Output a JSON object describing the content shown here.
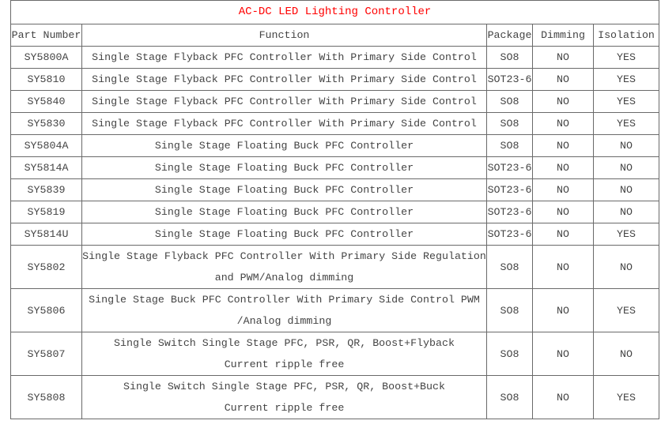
{
  "title": "AC-DC LED Lighting Controller",
  "headers": [
    "Part Number",
    "Function",
    "Package",
    "Dimming",
    "Isolation"
  ],
  "rows": [
    {
      "part": "SY5800A",
      "function": [
        "Single Stage Flyback PFC Controller With Primary Side Control"
      ],
      "package": "SO8",
      "dimming": "NO",
      "isolation": "YES"
    },
    {
      "part": "SY5810",
      "function": [
        "Single Stage Flyback PFC Controller With Primary Side Control"
      ],
      "package": "SOT23-6",
      "dimming": "NO",
      "isolation": "YES"
    },
    {
      "part": "SY5840",
      "function": [
        "Single Stage Flyback PFC Controller With Primary Side Control"
      ],
      "package": "SO8",
      "dimming": "NO",
      "isolation": "YES"
    },
    {
      "part": "SY5830",
      "function": [
        "Single Stage Flyback PFC Controller With Primary Side Control"
      ],
      "package": "SO8",
      "dimming": "NO",
      "isolation": "YES"
    },
    {
      "part": "SY5804A",
      "function": [
        "Single Stage Floating Buck PFC Controller"
      ],
      "package": "SO8",
      "dimming": "NO",
      "isolation": "NO"
    },
    {
      "part": "SY5814A",
      "function": [
        "Single Stage Floating Buck PFC Controller"
      ],
      "package": "SOT23-6",
      "dimming": "NO",
      "isolation": "NO"
    },
    {
      "part": "SY5839",
      "function": [
        "Single Stage Floating Buck PFC Controller"
      ],
      "package": "SOT23-6",
      "dimming": "NO",
      "isolation": "NO"
    },
    {
      "part": "SY5819",
      "function": [
        "Single Stage Floating Buck PFC Controller"
      ],
      "package": "SOT23-6",
      "dimming": "NO",
      "isolation": "NO"
    },
    {
      "part": "SY5814U",
      "function": [
        "Single Stage Floating Buck PFC Controller"
      ],
      "package": "SOT23-6",
      "dimming": "NO",
      "isolation": "YES"
    },
    {
      "part": "SY5802",
      "function": [
        "Single Stage Flyback PFC Controller With Primary Side Regulation",
        "and PWM/Analog dimming"
      ],
      "package": "SO8",
      "dimming": "NO",
      "isolation": "NO"
    },
    {
      "part": "SY5806",
      "function": [
        "Single Stage Buck PFC Controller With Primary Side Control PWM",
        "/Analog dimming"
      ],
      "package": "SO8",
      "dimming": "NO",
      "isolation": "YES"
    },
    {
      "part": "SY5807",
      "function": [
        "Single Switch Single Stage PFC, PSR, QR, Boost+Flyback",
        "Current ripple free"
      ],
      "package": "SO8",
      "dimming": "NO",
      "isolation": "NO"
    },
    {
      "part": "SY5808",
      "function": [
        "Single Switch Single Stage PFC, PSR, QR, Boost+Buck",
        "Current ripple free"
      ],
      "package": "SO8",
      "dimming": "NO",
      "isolation": "YES"
    }
  ],
  "colors": {
    "title": "#ff0000",
    "text": "#444444",
    "border": "#6a6a6a"
  }
}
